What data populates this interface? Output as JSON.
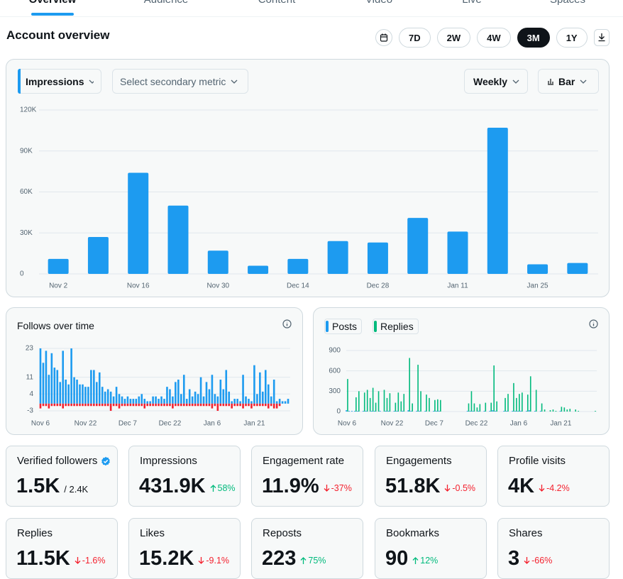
{
  "tabs": [
    "Overview",
    "Audience",
    "Content",
    "Video",
    "Live",
    "Spaces"
  ],
  "header": {
    "title": "Account overview",
    "ranges": [
      "7D",
      "2W",
      "4W",
      "3M",
      "1Y"
    ],
    "selected_range": 3
  },
  "controls": {
    "metric": "Impressions",
    "secondary": "Select secondary metric",
    "interval": "Weekly",
    "chart_style": "Bar"
  },
  "chart_data": [
    {
      "type": "bar",
      "categories": [
        "Nov 2",
        null,
        "Nov 16",
        null,
        "Nov 30",
        null,
        "Dec 14",
        null,
        "Dec 28",
        null,
        "Jan 11",
        null,
        "Jan 25",
        null
      ],
      "values": [
        11000,
        27000,
        74000,
        50000,
        17000,
        6000,
        11000,
        24000,
        23000,
        41000,
        31000,
        107000,
        7000,
        8000
      ],
      "color": "#1d9bf0",
      "ylim": [
        0,
        120000
      ],
      "yticks": [
        0,
        {
          "value": 30000,
          "label": "30K"
        },
        {
          "value": 60000,
          "label": "60K"
        },
        {
          "value": 90000,
          "label": "90K"
        },
        {
          "value": 120000,
          "label": "120K"
        }
      ],
      "grid": true
    },
    {
      "type": "bar",
      "title": "Follows over time",
      "categories": [
        "Nov 6",
        null,
        null,
        null,
        null,
        null,
        null,
        null,
        null,
        null,
        null,
        null,
        null,
        null,
        null,
        null,
        "Nov 22",
        null,
        null,
        null,
        null,
        null,
        null,
        null,
        null,
        null,
        null,
        null,
        null,
        null,
        null,
        "Dec 7",
        null,
        null,
        null,
        null,
        null,
        null,
        null,
        null,
        null,
        null,
        null,
        null,
        null,
        null,
        "Dec 22",
        null,
        null,
        null,
        null,
        null,
        null,
        null,
        null,
        null,
        null,
        null,
        null,
        null,
        null,
        "Jan 6",
        null,
        null,
        null,
        null,
        null,
        null,
        null,
        null,
        null,
        null,
        null,
        null,
        null,
        null,
        "Jan 21",
        null,
        null,
        null,
        null,
        null,
        null,
        null,
        null,
        null,
        null,
        null,
        null
      ],
      "series": [
        {
          "color": "#1d9bf0",
          "values": [
            23,
            17,
            22,
            12,
            21,
            15,
            14,
            9,
            22,
            10,
            8,
            23,
            11,
            10,
            8,
            8,
            7,
            7,
            14,
            14,
            9,
            13,
            7,
            5,
            6,
            5,
            3,
            7,
            4,
            3,
            2,
            3,
            2,
            2,
            2,
            3,
            4,
            2,
            1,
            1,
            3,
            3,
            2,
            3,
            2,
            7,
            6,
            3,
            9,
            10,
            4,
            12,
            2,
            6,
            3,
            5,
            4,
            11,
            3,
            9,
            6,
            12,
            4,
            3,
            10,
            6,
            14,
            5,
            1,
            2,
            2,
            1,
            12,
            3,
            2,
            1,
            16,
            4,
            13,
            5,
            14,
            8,
            3,
            10,
            1,
            2,
            1,
            1,
            2
          ]
        },
        {
          "color": "#f4212e",
          "values": [
            -2,
            -1,
            -1,
            -2,
            -1,
            -1,
            -1,
            -1,
            -2,
            -1,
            -1,
            -1,
            -1,
            -1,
            -1,
            -1,
            -1,
            -1,
            -1,
            -1,
            -1,
            -1,
            -1,
            -1,
            -1,
            -3,
            -1,
            -1,
            -2,
            -1,
            -1,
            -1,
            -1,
            -1,
            -1,
            -1,
            -1,
            -2,
            -1,
            -1,
            -1,
            -1,
            -1,
            -1,
            -1,
            -1,
            -1,
            -2,
            -1,
            -1,
            -1,
            -1,
            -1,
            -1,
            -1,
            -1,
            -1,
            -1,
            -1,
            -1,
            -1,
            -2,
            -1,
            -3,
            -1,
            -1,
            -1,
            -1,
            -2,
            -1,
            -1,
            -1,
            -2,
            -1,
            -1,
            -2,
            -1,
            -1,
            -1,
            -1,
            -1,
            -2,
            -1,
            -2,
            -2,
            -1,
            0,
            0,
            0
          ]
        }
      ],
      "ylim": [
        -3,
        23
      ],
      "yticks": [
        -3,
        4,
        11,
        23
      ],
      "grid": true
    },
    {
      "type": "bar",
      "categories": [
        "Nov 6",
        null,
        null,
        null,
        null,
        null,
        null,
        null,
        null,
        null,
        null,
        null,
        null,
        null,
        null,
        null,
        "Nov 22",
        null,
        null,
        null,
        null,
        null,
        null,
        null,
        null,
        null,
        null,
        null,
        null,
        null,
        null,
        "Dec 7",
        null,
        null,
        null,
        null,
        null,
        null,
        null,
        null,
        null,
        null,
        null,
        null,
        null,
        null,
        "Dec 22",
        null,
        null,
        null,
        null,
        null,
        null,
        null,
        null,
        null,
        null,
        null,
        null,
        null,
        null,
        "Jan 6",
        null,
        null,
        null,
        null,
        null,
        null,
        null,
        null,
        null,
        null,
        null,
        null,
        null,
        null,
        "Jan 21",
        null,
        null,
        null,
        null,
        null,
        null,
        null,
        null,
        null,
        null,
        null,
        null
      ],
      "series": [
        {
          "name": "Posts",
          "color": "#1d9bf0",
          "values": [
            20,
            10,
            10,
            10,
            10,
            0,
            10,
            10,
            0,
            10,
            10,
            0,
            10,
            0,
            10,
            10,
            0,
            10,
            10,
            0,
            10,
            0,
            20,
            10,
            0,
            10,
            10,
            0,
            10,
            0,
            0,
            10,
            10,
            10,
            0,
            0,
            0,
            0,
            0,
            0,
            0,
            0,
            0,
            10,
            10,
            10,
            0,
            10,
            0,
            10,
            0,
            10,
            20,
            10,
            0,
            0,
            10,
            10,
            0,
            10,
            10,
            10,
            10,
            0,
            10,
            20,
            0,
            10,
            0,
            10,
            0,
            0,
            0,
            0,
            0,
            0,
            10,
            0,
            0,
            0,
            0,
            0,
            0,
            0,
            0,
            0,
            0,
            0,
            0
          ]
        },
        {
          "name": "Replies",
          "color": "#00ba7c",
          "values": [
            480,
            0,
            0,
            210,
            300,
            0,
            280,
            320,
            200,
            350,
            130,
            300,
            0,
            320,
            200,
            270,
            0,
            130,
            280,
            150,
            260,
            0,
            790,
            120,
            0,
            690,
            300,
            0,
            250,
            200,
            0,
            170,
            180,
            170,
            0,
            0,
            0,
            0,
            0,
            0,
            0,
            0,
            0,
            120,
            300,
            120,
            60,
            110,
            0,
            130,
            0,
            130,
            680,
            150,
            0,
            0,
            200,
            260,
            0,
            420,
            200,
            260,
            280,
            0,
            250,
            520,
            0,
            320,
            0,
            120,
            30,
            0,
            20,
            30,
            10,
            0,
            70,
            60,
            30,
            40,
            0,
            30,
            10,
            0,
            0,
            0,
            0,
            0,
            10
          ]
        }
      ],
      "ylim": [
        0,
        900
      ],
      "yticks": [
        0,
        300,
        600,
        900
      ],
      "grid": true
    }
  ],
  "stats": [
    {
      "label": "Verified followers",
      "value": "1.5K",
      "total": "/ 2.4K",
      "verified": true
    },
    {
      "label": "Impressions",
      "value": "431.9K",
      "change": "58%",
      "trend": "up"
    },
    {
      "label": "Engagement rate",
      "value": "11.9%",
      "change": "-37%",
      "trend": "down"
    },
    {
      "label": "Engagements",
      "value": "51.8K",
      "change": "-0.5%",
      "trend": "down"
    },
    {
      "label": "Profile visits",
      "value": "4K",
      "change": "-4.2%",
      "trend": "down"
    },
    {
      "label": "Replies",
      "value": "11.5K",
      "change": "-1.6%",
      "trend": "down"
    },
    {
      "label": "Likes",
      "value": "15.2K",
      "change": "-9.1%",
      "trend": "down"
    },
    {
      "label": "Reposts",
      "value": "223",
      "change": "75%",
      "trend": "up"
    },
    {
      "label": "Bookmarks",
      "value": "90",
      "change": "12%",
      "trend": "up"
    },
    {
      "label": "Shares",
      "value": "3",
      "change": "-66%",
      "trend": "down"
    }
  ]
}
